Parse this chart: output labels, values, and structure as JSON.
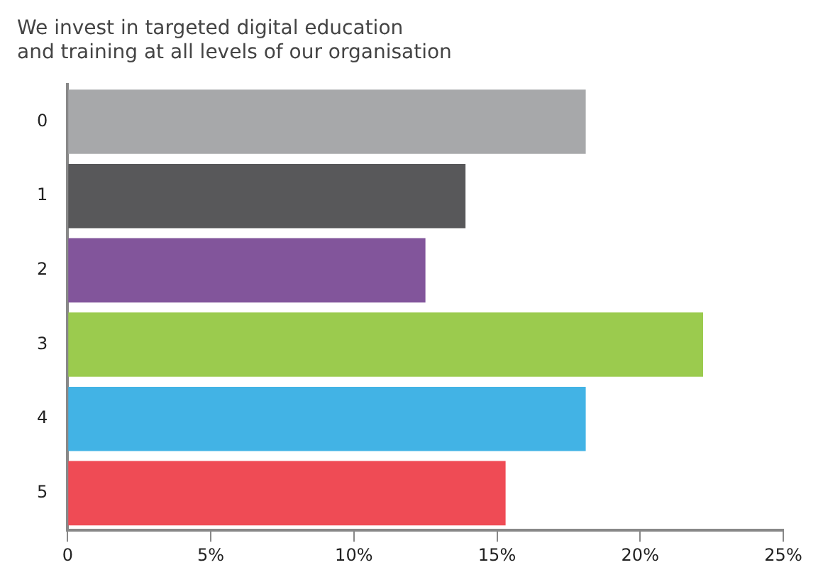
{
  "chart_data": {
    "type": "bar",
    "orientation": "horizontal",
    "title": "We invest in targeted digital education\nand training at all levels of our organisation",
    "categories": [
      "0",
      "1",
      "2",
      "3",
      "4",
      "5"
    ],
    "values": [
      18.1,
      13.9,
      12.5,
      22.2,
      18.1,
      15.3
    ],
    "colors": [
      "#a7a8aa",
      "#58585a",
      "#82559b",
      "#9bcb4e",
      "#42b3e5",
      "#ef4b55"
    ],
    "xlim": [
      0,
      25
    ],
    "xticks": [
      0,
      {
        "value": 5,
        "label": "5%"
      },
      {
        "value": 10,
        "label": "10%"
      },
      {
        "value": 15,
        "label": "15%"
      },
      {
        "value": 20,
        "label": "20%"
      },
      {
        "value": 25,
        "label": "25%"
      }
    ],
    "grid": false,
    "legend": false
  }
}
